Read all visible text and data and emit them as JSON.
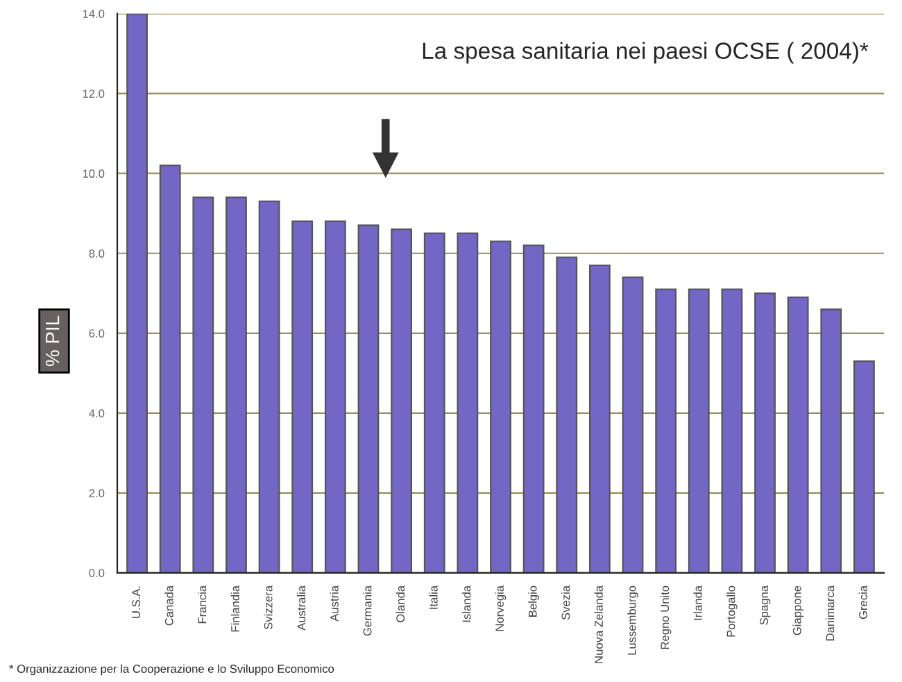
{
  "chart_data": {
    "type": "bar",
    "title": "La spesa sanitaria nei paesi OCSE ( 2004)*",
    "ylabel": "% PIL",
    "categories": [
      "U.S.A.",
      "Canada",
      "Francia",
      "Finlandia",
      "Svizzera",
      "Australia",
      "Austria",
      "Germania",
      "Olanda",
      "Italia",
      "Islanda",
      "Norvegia",
      "Belgio",
      "Svezia",
      "Nuova Zelanda",
      "Lussemburgo",
      "Regno Unito",
      "Irlanda",
      "Portogallo",
      "Spagna",
      "Giappone",
      "Danimarca",
      "Grecia"
    ],
    "values": [
      14.0,
      10.2,
      9.4,
      9.4,
      9.3,
      8.8,
      8.8,
      8.7,
      8.6,
      8.5,
      8.5,
      8.3,
      8.2,
      7.9,
      7.7,
      7.4,
      7.1,
      7.1,
      7.1,
      7.0,
      6.9,
      6.6,
      5.3
    ],
    "color": "#7466c4",
    "ylim": [
      0,
      14
    ],
    "yticks": [
      {
        "value": 0,
        "label": "0.0"
      },
      {
        "value": 2,
        "label": "2.0"
      },
      {
        "value": 4,
        "label": "4.0"
      },
      {
        "value": 6,
        "label": "6.0"
      },
      {
        "value": 8,
        "label": "8.0"
      },
      {
        "value": 10,
        "label": "10.0"
      },
      {
        "value": 12,
        "label": "12.0"
      },
      {
        "value": 14,
        "label": "14.0"
      }
    ],
    "grid": "y",
    "annotations": [
      "* Organizzazione per la Cooperazione e lo Sviluppo Economico"
    ]
  }
}
